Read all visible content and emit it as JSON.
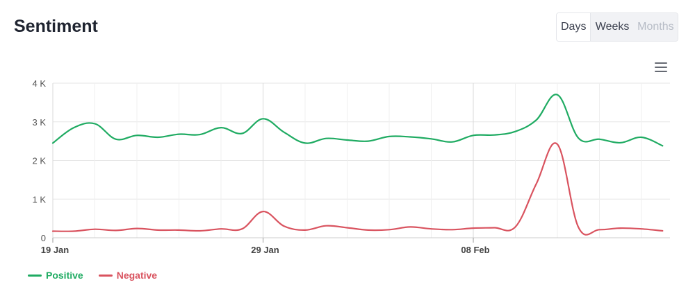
{
  "header": {
    "title": "Sentiment"
  },
  "range_toggle": {
    "options": [
      "Days",
      "Weeks",
      "Months"
    ],
    "selected": "Days"
  },
  "menu": {
    "icon": "hamburger-menu-icon"
  },
  "colors": {
    "positive": "#1fab62",
    "negative": "#d9535f",
    "grid": "#e6e6e6",
    "axis_text": "#555555"
  },
  "chart_data": {
    "type": "line",
    "title": "Sentiment",
    "xlabel": "",
    "ylabel": "",
    "x": [
      "2024-01-19",
      "2024-01-20",
      "2024-01-21",
      "2024-01-22",
      "2024-01-23",
      "2024-01-24",
      "2024-01-25",
      "2024-01-26",
      "2024-01-27",
      "2024-01-28",
      "2024-01-29",
      "2024-01-30",
      "2024-01-31",
      "2024-02-01",
      "2024-02-02",
      "2024-02-03",
      "2024-02-04",
      "2024-02-05",
      "2024-02-06",
      "2024-02-07",
      "2024-02-08",
      "2024-02-09",
      "2024-02-10",
      "2024-02-11",
      "2024-02-12",
      "2024-02-13",
      "2024-02-14",
      "2024-02-15",
      "2024-02-16",
      "2024-02-17"
    ],
    "x_ticks": [
      "19 Jan",
      "29 Jan",
      "08 Feb"
    ],
    "x_tick_dates": [
      "2024-01-19",
      "2024-01-29",
      "2024-02-08"
    ],
    "y_ticks": [
      "0",
      "1 K",
      "2 K",
      "3 K",
      "4 K"
    ],
    "ylim": [
      0,
      4000
    ],
    "grid": true,
    "legend": "bottom-left",
    "series": [
      {
        "name": "Positive",
        "color": "#1fab62",
        "values": [
          2450,
          2850,
          2950,
          2550,
          2650,
          2600,
          2680,
          2670,
          2850,
          2700,
          3080,
          2730,
          2450,
          2570,
          2530,
          2500,
          2620,
          2610,
          2560,
          2480,
          2650,
          2660,
          2750,
          3050,
          3700,
          2580,
          2550,
          2460,
          2600,
          2380
        ]
      },
      {
        "name": "Negative",
        "color": "#d9535f",
        "values": [
          170,
          170,
          220,
          190,
          240,
          200,
          200,
          180,
          230,
          230,
          680,
          300,
          200,
          310,
          260,
          200,
          210,
          280,
          230,
          210,
          250,
          260,
          280,
          1400,
          2420,
          270,
          210,
          250,
          230,
          180
        ]
      }
    ]
  }
}
